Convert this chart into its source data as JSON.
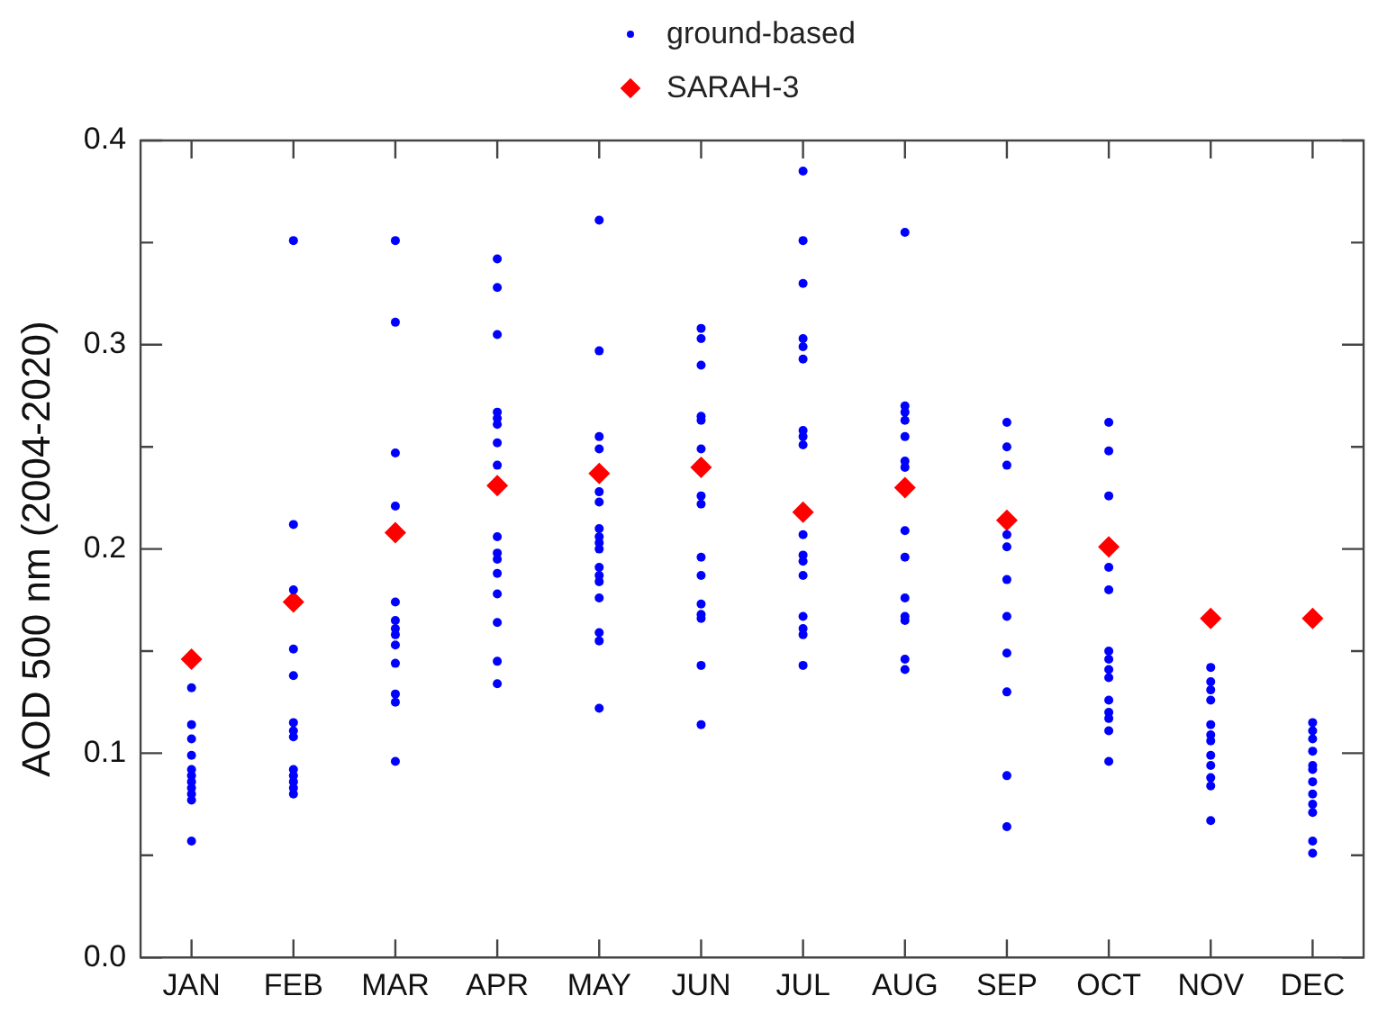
{
  "chart_data": {
    "type": "scatter",
    "ylabel": "AOD 500 nm (2004-2020)",
    "legend": "top",
    "categories": [
      "JAN",
      "FEB",
      "MAR",
      "APR",
      "MAY",
      "JUN",
      "JUL",
      "AUG",
      "SEP",
      "OCT",
      "NOV",
      "DEC"
    ],
    "ylim": [
      0,
      0.4
    ],
    "yticks": [
      {
        "value": 0,
        "label": "0.0"
      },
      {
        "value": 0.05,
        "label": null
      },
      0.1,
      {
        "value": 0.15,
        "label": null
      },
      0.2,
      {
        "value": 0.25,
        "label": null
      },
      0.3,
      {
        "value": 0.35,
        "label": null
      },
      0.4
    ],
    "grid": false,
    "series": [
      {
        "name": "ground-based",
        "color": "#0000ff",
        "marker": "circle",
        "x": [
          "JAN",
          "JAN",
          "JAN",
          "JAN",
          "JAN",
          "JAN",
          "JAN",
          "JAN",
          "JAN",
          "JAN",
          "JAN",
          "FEB",
          "FEB",
          "FEB",
          "FEB",
          "FEB",
          "FEB",
          "FEB",
          "FEB",
          "FEB",
          "FEB",
          "FEB",
          "FEB",
          "FEB",
          "MAR",
          "MAR",
          "MAR",
          "MAR",
          "MAR",
          "MAR",
          "MAR",
          "MAR",
          "MAR",
          "MAR",
          "MAR",
          "MAR",
          "MAR",
          "APR",
          "APR",
          "APR",
          "APR",
          "APR",
          "APR",
          "APR",
          "APR",
          "APR",
          "APR",
          "APR",
          "APR",
          "APR",
          "APR",
          "APR",
          "APR",
          "MAY",
          "MAY",
          "MAY",
          "MAY",
          "MAY",
          "MAY",
          "MAY",
          "MAY",
          "MAY",
          "MAY",
          "MAY",
          "MAY",
          "MAY",
          "MAY",
          "MAY",
          "MAY",
          "MAY",
          "JUN",
          "JUN",
          "JUN",
          "JUN",
          "JUN",
          "JUN",
          "JUN",
          "JUN",
          "JUN",
          "JUN",
          "JUN",
          "JUN",
          "JUN",
          "JUN",
          "JUN",
          "JUL",
          "JUL",
          "JUL",
          "JUL",
          "JUL",
          "JUL",
          "JUL",
          "JUL",
          "JUL",
          "JUL",
          "JUL",
          "JUL",
          "JUL",
          "JUL",
          "JUL",
          "JUL",
          "JUL",
          "AUG",
          "AUG",
          "AUG",
          "AUG",
          "AUG",
          "AUG",
          "AUG",
          "AUG",
          "AUG",
          "AUG",
          "AUG",
          "AUG",
          "AUG",
          "AUG",
          "SEP",
          "SEP",
          "SEP",
          "SEP",
          "SEP",
          "SEP",
          "SEP",
          "SEP",
          "SEP",
          "SEP",
          "SEP",
          "OCT",
          "OCT",
          "OCT",
          "OCT",
          "OCT",
          "OCT",
          "OCT",
          "OCT",
          "OCT",
          "OCT",
          "OCT",
          "OCT",
          "OCT",
          "OCT",
          "NOV",
          "NOV",
          "NOV",
          "NOV",
          "NOV",
          "NOV",
          "NOV",
          "NOV",
          "NOV",
          "NOV",
          "NOV",
          "NOV",
          "DEC",
          "DEC",
          "DEC",
          "DEC",
          "DEC",
          "DEC",
          "DEC",
          "DEC",
          "DEC",
          "DEC",
          "DEC",
          "DEC"
        ],
        "values": [
          0.132,
          0.114,
          0.107,
          0.099,
          0.092,
          0.089,
          0.086,
          0.083,
          0.08,
          0.077,
          0.057,
          0.351,
          0.212,
          0.18,
          0.151,
          0.138,
          0.115,
          0.111,
          0.108,
          0.092,
          0.089,
          0.086,
          0.083,
          0.08,
          0.351,
          0.311,
          0.247,
          0.221,
          0.174,
          0.165,
          0.161,
          0.158,
          0.153,
          0.144,
          0.129,
          0.125,
          0.096,
          0.342,
          0.328,
          0.305,
          0.267,
          0.264,
          0.261,
          0.252,
          0.241,
          0.206,
          0.198,
          0.195,
          0.188,
          0.178,
          0.164,
          0.145,
          0.134,
          0.361,
          0.297,
          0.255,
          0.249,
          0.228,
          0.223,
          0.21,
          0.206,
          0.203,
          0.2,
          0.191,
          0.187,
          0.184,
          0.176,
          0.159,
          0.155,
          0.122,
          0.308,
          0.303,
          0.29,
          0.265,
          0.263,
          0.249,
          0.226,
          0.222,
          0.196,
          0.187,
          0.173,
          0.168,
          0.166,
          0.143,
          0.114,
          0.385,
          0.351,
          0.33,
          0.303,
          0.299,
          0.293,
          0.258,
          0.255,
          0.251,
          0.207,
          0.197,
          0.194,
          0.187,
          0.167,
          0.161,
          0.158,
          0.143,
          0.355,
          0.27,
          0.267,
          0.263,
          0.255,
          0.243,
          0.24,
          0.209,
          0.196,
          0.176,
          0.167,
          0.165,
          0.146,
          0.141,
          0.262,
          0.25,
          0.241,
          0.207,
          0.201,
          0.185,
          0.167,
          0.149,
          0.13,
          0.089,
          0.064,
          0.262,
          0.248,
          0.226,
          0.191,
          0.18,
          0.15,
          0.146,
          0.141,
          0.137,
          0.126,
          0.12,
          0.117,
          0.111,
          0.096,
          0.142,
          0.135,
          0.131,
          0.126,
          0.114,
          0.109,
          0.106,
          0.099,
          0.094,
          0.088,
          0.084,
          0.067,
          0.115,
          0.111,
          0.107,
          0.101,
          0.094,
          0.092,
          0.086,
          0.08,
          0.075,
          0.071,
          0.057,
          0.051
        ]
      },
      {
        "name": "SARAH-3",
        "color": "#ff0000",
        "marker": "diamond",
        "values": [
          0.146,
          0.174,
          0.208,
          0.231,
          0.237,
          0.24,
          0.218,
          0.23,
          0.214,
          0.201,
          0.166,
          0.166
        ]
      }
    ]
  }
}
